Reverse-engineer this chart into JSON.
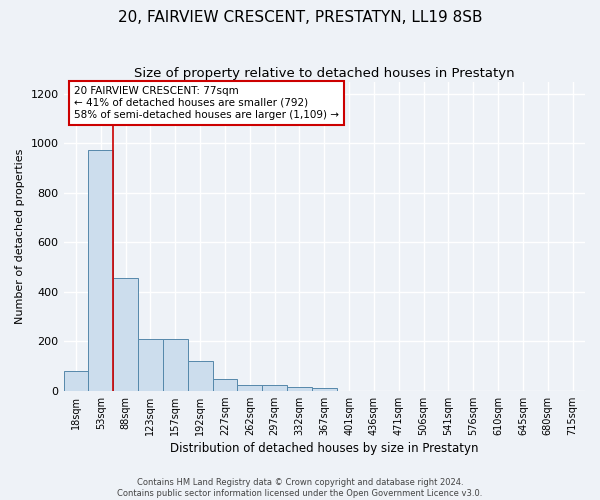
{
  "title": "20, FAIRVIEW CRESCENT, PRESTATYN, LL19 8SB",
  "subtitle": "Size of property relative to detached houses in Prestatyn",
  "xlabel": "Distribution of detached houses by size in Prestatyn",
  "ylabel": "Number of detached properties",
  "bar_labels": [
    "18sqm",
    "53sqm",
    "88sqm",
    "123sqm",
    "157sqm",
    "192sqm",
    "227sqm",
    "262sqm",
    "297sqm",
    "332sqm",
    "367sqm",
    "401sqm",
    "436sqm",
    "471sqm",
    "506sqm",
    "541sqm",
    "576sqm",
    "610sqm",
    "645sqm",
    "680sqm",
    "715sqm"
  ],
  "bar_values": [
    80,
    975,
    455,
    210,
    210,
    120,
    48,
    25,
    25,
    15,
    12,
    0,
    0,
    0,
    0,
    0,
    0,
    0,
    0,
    0,
    0
  ],
  "bar_color": "#ccdded",
  "bar_edge_color": "#5588aa",
  "red_line_x": 1.5,
  "annotation_text": "20 FAIRVIEW CRESCENT: 77sqm\n← 41% of detached houses are smaller (792)\n58% of semi-detached houses are larger (1,109) →",
  "annotation_box_color": "#ffffff",
  "annotation_box_edge_color": "#cc0000",
  "red_line_color": "#cc0000",
  "ylim": [
    0,
    1250
  ],
  "yticks": [
    0,
    200,
    400,
    600,
    800,
    1000,
    1200
  ],
  "footer_text": "Contains HM Land Registry data © Crown copyright and database right 2024.\nContains public sector information licensed under the Open Government Licence v3.0.",
  "background_color": "#eef2f7",
  "grid_color": "#ffffff",
  "title_fontsize": 11,
  "subtitle_fontsize": 9.5
}
